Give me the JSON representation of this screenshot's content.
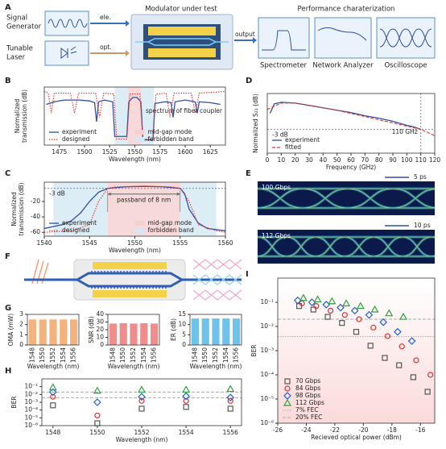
{
  "diagram": {
    "panel": "A",
    "signal_generator": [
      "Signal",
      "Generator"
    ],
    "tunable_laser": [
      "Tunable",
      "Laser"
    ],
    "ele": "ele.",
    "opt": "opt.",
    "modulator": "Modulator under test",
    "output": "output",
    "performance": "Performance charaterization",
    "instruments": [
      "Spectrometer",
      "Network Analyzer",
      "Oscilloscope"
    ]
  },
  "eye_diagrams": {
    "panel": "E",
    "items": [
      {
        "rate": "100 Gbps",
        "scale": "5 ps"
      },
      {
        "rate": "112 Gbps",
        "scale": "10 ps"
      }
    ]
  },
  "device": {
    "panel": "F"
  },
  "chart_data": [
    {
      "panel": "B",
      "type": "line",
      "xlabel": "Wavelength (nm)",
      "ylabel": [
        "Normalized",
        "transmission (dB)"
      ],
      "xlim": [
        1460,
        1640
      ],
      "xticks": [
        1475,
        1500,
        1525,
        1550,
        1575,
        1600,
        1625
      ],
      "ylim": [
        -62,
        5
      ],
      "legend": "lower left",
      "series": [
        {
          "name": "experiment",
          "color": "#2f4fa2",
          "style": "solid",
          "x": [
            1462,
            1470,
            1480,
            1495,
            1505,
            1510,
            1512,
            1514,
            1520,
            1528,
            1530,
            1542,
            1544,
            1548,
            1552,
            1556,
            1558,
            1568,
            1570,
            1580,
            1586,
            1588,
            1590,
            1600,
            1610,
            1612,
            1614,
            1625,
            1635
          ],
          "values": [
            -15,
            -12,
            -10,
            -10,
            -11,
            -13,
            -35,
            -12,
            -10,
            -12,
            -52,
            -52,
            -12,
            -7,
            -7,
            -12,
            -56,
            -56,
            -14,
            -12,
            -13,
            -30,
            -12,
            -10,
            -12,
            -25,
            -12,
            -13,
            -15
          ]
        },
        {
          "name": "designed",
          "color": "#e8332a",
          "style": "dotted",
          "x": [
            1460,
            1464,
            1467,
            1470,
            1486,
            1490,
            1494,
            1511,
            1515,
            1519,
            1529,
            1532,
            1542,
            1545,
            1555,
            1558,
            1568,
            1571,
            1581,
            1585,
            1589,
            1606,
            1610,
            1614,
            1640
          ],
          "values": [
            0,
            -2,
            -25,
            -2,
            -2,
            -25,
            -2,
            -2,
            -30,
            -2,
            -3,
            -55,
            -55,
            -3,
            -3,
            -55,
            -55,
            -3,
            -2,
            -30,
            -2,
            -2,
            -25,
            -2,
            0
          ]
        }
      ],
      "regions": [
        {
          "name": "mid-gap mode",
          "color": "#f6cfcf",
          "ranges": [
            [
              1543,
              1556
            ]
          ]
        },
        {
          "name": "forbidden band",
          "color": "#d3e8f4",
          "ranges": [
            [
              1530,
              1543
            ],
            [
              1556,
              1569
            ]
          ]
        }
      ],
      "annotations": [
        {
          "text": "spectrum of fiber coupler"
        }
      ]
    },
    {
      "panel": "C",
      "type": "line",
      "xlabel": "Wavelength (nm)",
      "ylabel": [
        "Normalized",
        "transmission (dB)"
      ],
      "xlim": [
        1540,
        1560
      ],
      "xticks": [
        1540,
        1545,
        1550,
        1555,
        1560
      ],
      "ylim": [
        -65,
        5
      ],
      "yticks": [
        -60,
        -40,
        -20
      ],
      "legend": "lower left",
      "series": [
        {
          "name": "experiment",
          "color": "#2f4fa2",
          "style": "solid",
          "x": [
            1540,
            1542,
            1543,
            1544,
            1545,
            1546,
            1547,
            1549,
            1551,
            1553,
            1555,
            1555.5,
            1556,
            1557,
            1558,
            1560
          ],
          "values": [
            -55,
            -50,
            -45,
            -35,
            -20,
            -8,
            -3,
            -1,
            -0.5,
            -1,
            -3,
            -10,
            -30,
            -48,
            -55,
            -58
          ]
        },
        {
          "name": "designed",
          "color": "#e8332a",
          "style": "dotted",
          "x": [
            1540,
            1543,
            1545,
            1546,
            1547,
            1548,
            1551,
            1554,
            1555,
            1556,
            1557,
            1559,
            1560
          ],
          "values": [
            -60,
            -58,
            -50,
            -20,
            -3,
            -1,
            0,
            -1,
            -3,
            -20,
            -50,
            -58,
            -60
          ]
        }
      ],
      "regions": [
        {
          "name": "mid-gap mode",
          "color": "#f6cfcf",
          "ranges": [
            [
              1547,
              1555
            ]
          ]
        },
        {
          "name": "forbidden band",
          "color": "#d3e8f4",
          "ranges": [
            [
              1541,
              1547
            ],
            [
              1555,
              1559
            ]
          ]
        }
      ],
      "annotations": [
        {
          "text": "-3 dB",
          "y": -3
        },
        {
          "text": "passband of 8 nm",
          "x": [
            1547,
            1555
          ]
        }
      ]
    },
    {
      "panel": "D",
      "type": "line",
      "xlabel": "Frequency (GHz)",
      "ylabel": [
        "Normalized S₂₁ (dB)"
      ],
      "xlim": [
        0,
        120
      ],
      "xticks": [
        0,
        10,
        20,
        30,
        40,
        50,
        60,
        70,
        80,
        90,
        100,
        110,
        120
      ],
      "ylim": [
        -6,
        1.5
      ],
      "legend": "lower left",
      "series": [
        {
          "name": "experiment",
          "color": "#2f4fa2",
          "style": "solid",
          "x": [
            2,
            5,
            10,
            20,
            30,
            40,
            50,
            60,
            70,
            80,
            90,
            100,
            105,
            110
          ],
          "values": [
            -1,
            0.2,
            0.4,
            0.3,
            0,
            -0.3,
            -0.6,
            -0.9,
            -1.3,
            -1.6,
            -2,
            -2.5,
            -2.7,
            -3
          ]
        },
        {
          "name": "fitted",
          "color": "#e8332a",
          "style": "dashed",
          "x": [
            0,
            10,
            20,
            30,
            40,
            50,
            60,
            70,
            80,
            90,
            100,
            110,
            120
          ],
          "values": [
            -0.5,
            0.3,
            0.3,
            0,
            -0.3,
            -0.6,
            -1,
            -1.4,
            -1.8,
            -2.2,
            -2.6,
            -3,
            -3.8
          ]
        }
      ],
      "annotations": [
        {
          "text": "-3 dB",
          "y": -3
        },
        {
          "text": "110 GHz",
          "x": 110
        }
      ]
    },
    {
      "panel": "G",
      "type": "bar",
      "xlabel": "Wavelength (nm)",
      "ylabel": [
        "OMA (mW)"
      ],
      "categories": [
        "1548",
        "1550",
        "1552",
        "1554",
        "1556"
      ],
      "values": [
        2.5,
        2.5,
        2.5,
        2.5,
        2.5
      ],
      "color": "#f4b27c",
      "ylim": [
        0,
        3
      ],
      "yticks": [
        0,
        1,
        2,
        3
      ]
    },
    {
      "type": "bar",
      "xlabel": "Wavelength (nm)",
      "ylabel": [
        "SNR (dB)"
      ],
      "categories": [
        "1548",
        "1550",
        "1552",
        "1554",
        "1556"
      ],
      "values": [
        28,
        28.5,
        28,
        28.5,
        28
      ],
      "color": "#ef8d8d",
      "ylim": [
        0,
        40
      ],
      "yticks": [
        0,
        10,
        20,
        30,
        40
      ]
    },
    {
      "type": "bar",
      "xlabel": "Wavelength (nm)",
      "ylabel": [
        "ER (dB)"
      ],
      "categories": [
        "1548",
        "1550",
        "1552",
        "1554",
        "1556"
      ],
      "values": [
        13,
        13,
        13,
        13,
        13
      ],
      "color": "#6fc3ea",
      "ylim": [
        0,
        15
      ],
      "yticks": [
        0,
        5,
        10,
        15
      ]
    },
    {
      "panel": "H",
      "type": "scatter",
      "xlabel": "Wavelength (nm)",
      "ylabel": [
        "BER"
      ],
      "log": true,
      "x": [
        1548,
        1550,
        1552,
        1554,
        1556
      ],
      "xlim": [
        1547.5,
        1556.5
      ],
      "xticks": [
        1548,
        1550,
        1552,
        1554,
        1556
      ],
      "ylim": [
        1e-06,
        1
      ],
      "yticks": [
        {
          "value": 0.1,
          "label": "10⁻¹"
        },
        {
          "value": 0.01,
          "label": "10⁻²"
        },
        {
          "value": 0.001,
          "label": "10⁻³"
        },
        {
          "value": 0.0001,
          "label": "10⁻⁴"
        },
        {
          "value": 1e-05,
          "label": "10⁻⁵"
        },
        {
          "value": 1e-06,
          "label": "10⁻⁶"
        }
      ],
      "series": [
        {
          "color": "#555555",
          "marker": "square",
          "values": [
            0.0004,
            2e-06,
            0.00015,
            0.00025,
            0.00015
          ]
        },
        {
          "color": "#e03030",
          "marker": "circle",
          "values": [
            0.005,
            2e-05,
            0.0015,
            0.0015,
            0.0015
          ]
        },
        {
          "color": "#2060d0",
          "marker": "diamond",
          "values": [
            0.02,
            0.001,
            0.005,
            0.006,
            0.004
          ]
        },
        {
          "color": "#30a040",
          "marker": "triangle",
          "values": [
            0.08,
            0.03,
            0.04,
            0.04,
            0.05
          ]
        }
      ],
      "hlines": [
        0.02,
        0.0038
      ]
    },
    {
      "panel": "I",
      "type": "scatter",
      "xlabel": "Recieved optical power (dBm)",
      "ylabel": [
        "BER"
      ],
      "log": true,
      "legend": "lower left",
      "xlim": [
        -26,
        -15
      ],
      "xticks": [
        -26,
        -24,
        -22,
        -20,
        -18,
        -16
      ],
      "ylim": [
        1e-06,
        1
      ],
      "yticks": [
        {
          "value": 0.1,
          "label": "10⁻¹"
        },
        {
          "value": 0.01,
          "label": "10⁻²"
        },
        {
          "value": 0.001,
          "label": "10⁻³"
        },
        {
          "value": 0.0001,
          "label": "10⁻⁴"
        },
        {
          "value": 1e-05,
          "label": "10⁻⁵"
        },
        {
          "value": 1e-06,
          "label": "10⁻⁶"
        }
      ],
      "series": [
        {
          "name": "70 Gbps",
          "color": "#555555",
          "marker": "square",
          "x": [
            -24.5,
            -23.5,
            -22.5,
            -21.5,
            -20.5,
            -19.5,
            -18.5,
            -17.5,
            -16.5,
            -15.5
          ],
          "values": [
            0.07,
            0.05,
            0.025,
            0.014,
            0.006,
            0.0016,
            0.0005,
            0.00025,
            8e-05,
            2e-05
          ]
        },
        {
          "name": "84 Gbps",
          "color": "#e03030",
          "marker": "circle",
          "x": [
            -24.3,
            -23.3,
            -22.3,
            -21.3,
            -20.3,
            -19.3,
            -18.3,
            -17.3,
            -16.3,
            -15.3
          ],
          "values": [
            0.09,
            0.07,
            0.045,
            0.03,
            0.02,
            0.009,
            0.004,
            0.0015,
            0.0004,
            0.0001
          ]
        },
        {
          "name": "98 Gbps",
          "color": "#2060d0",
          "marker": "diamond",
          "x": [
            -24.6,
            -23.6,
            -22.6,
            -21.6,
            -20.6,
            -19.6,
            -18.6,
            -17.6,
            -16.6
          ],
          "values": [
            0.12,
            0.1,
            0.08,
            0.06,
            0.045,
            0.03,
            0.015,
            0.006,
            0.0025
          ]
        },
        {
          "name": "112 Gbps",
          "color": "#30a040",
          "marker": "triangle",
          "x": [
            -24.2,
            -23.2,
            -22.2,
            -21.2,
            -20.2,
            -19.2,
            -18.2,
            -17.2
          ],
          "values": [
            0.15,
            0.13,
            0.11,
            0.09,
            0.07,
            0.05,
            0.035,
            0.025
          ]
        }
      ],
      "hlines": [
        {
          "name": "7% FEC",
          "value": 0.0038,
          "style": "dotted"
        },
        {
          "name": "20% FEC",
          "value": 0.02,
          "style": "dashed"
        }
      ]
    }
  ]
}
